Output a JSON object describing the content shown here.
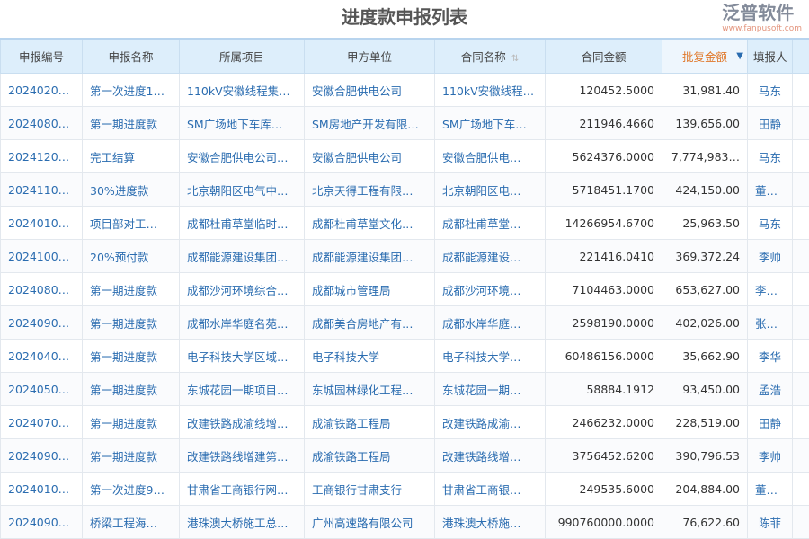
{
  "title": "进度款申报列表",
  "columns": [
    "申报编号",
    "申报名称",
    "所属项目",
    "甲方单位",
    "合同名称",
    "合同金额",
    "批复金额",
    "填报人"
  ],
  "rows": [
    [
      "2024020…",
      "第一次进度1…",
      "110kV安徽线程集…",
      "安徽合肥供电公司",
      "110kV安徽线程…",
      "120452.5000",
      "31,981.40",
      "马东"
    ],
    [
      "2024080…",
      "第一期进度款",
      "SM广场地下车库…",
      "SM房地产开发有限…",
      "SM广场地下车…",
      "211946.4660",
      "139,656.00",
      "田静"
    ],
    [
      "2024120…",
      "完工结算",
      "安徽合肥供电公司…",
      "安徽合肥供电公司",
      "安徽合肥供电…",
      "5624376.0000",
      "7,774,983…",
      "马东"
    ],
    [
      "2024110…",
      "30%进度款",
      "北京朝阳区电气中…",
      "北京天得工程有限…",
      "北京朝阳区电…",
      "5718451.1700",
      "424,150.00",
      "董清平"
    ],
    [
      "2024010…",
      "项目部对工…",
      "成都杜甫草堂临时…",
      "成都杜甫草堂文化…",
      "成都杜甫草堂…",
      "14266954.6700",
      "25,963.50",
      "马东"
    ],
    [
      "2024100…",
      "20%预付款",
      "成都能源建设集团…",
      "成都能源建设集团…",
      "成都能源建设…",
      "221416.0410",
      "369,372.24",
      "李帅"
    ],
    [
      "2024080…",
      "第一期进度款",
      "成都沙河环境综合…",
      "成都城市管理局",
      "成都沙河环境…",
      "7104463.0000",
      "653,627.00",
      "李勤丽"
    ],
    [
      "2024090…",
      "第一期进度款",
      "成都水岸华庭名苑…",
      "成都美合房地产有…",
      "成都水岸华庭…",
      "2598190.0000",
      "402,026.00",
      "张成功"
    ],
    [
      "2024040…",
      "第一期进度款",
      "电子科技大学区域…",
      "电子科技大学",
      "电子科技大学…",
      "60486156.0000",
      "35,662.90",
      "李华"
    ],
    [
      "2024050…",
      "第一期进度款",
      "东城花园一期项目…",
      "东城园林绿化工程…",
      "东城花园一期…",
      "58884.1912",
      "93,450.00",
      "孟浩"
    ],
    [
      "2024070…",
      "第一期进度款",
      "改建铁路成渝线增…",
      "成渝铁路工程局",
      "改建铁路成渝…",
      "2466232.0000",
      "228,519.00",
      "田静"
    ],
    [
      "2024090…",
      "第一期进度款",
      "改建铁路线增建第…",
      "成渝铁路工程局",
      "改建铁路线增…",
      "3756452.6200",
      "390,796.53",
      "李帅"
    ],
    [
      "2024010…",
      "第一次进度9…",
      "甘肃省工商银行网…",
      "工商银行甘肃支行",
      "甘肃省工商银…",
      "249535.6000",
      "204,884.00",
      "董清平"
    ],
    [
      "2024090…",
      "桥梁工程海…",
      "港珠澳大桥施工总…",
      "广州高速路有限公司",
      "港珠澳大桥施…",
      "990760000.0000",
      "76,622.60",
      "陈菲"
    ]
  ],
  "watermark": {
    "brand": "泛普软件",
    "url": "www.fanpusoft.com"
  },
  "icons": {
    "sort": "sort-icon",
    "dropdown": "caret-down-icon"
  }
}
